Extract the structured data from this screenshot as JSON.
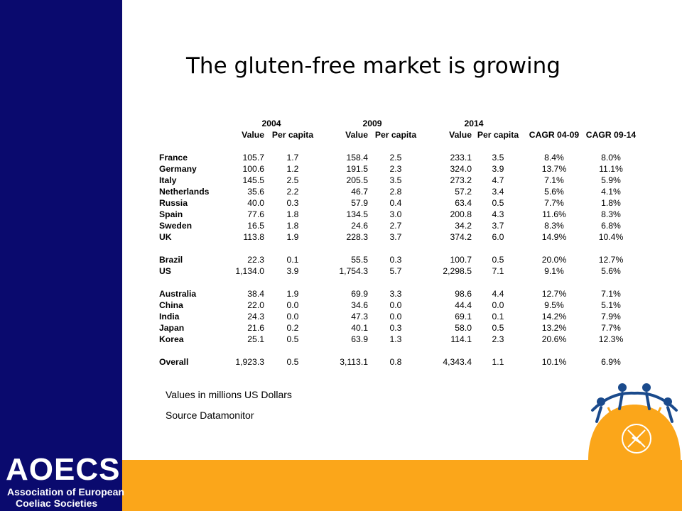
{
  "title": "The gluten-free market is growing",
  "logo": {
    "name": "AOECS",
    "line1": "Association of European",
    "line2": "Coeliac Societies"
  },
  "table": {
    "years": [
      "2004",
      "2009",
      "2014"
    ],
    "columns": [
      "Value",
      "Per capita",
      "Value",
      "Per capita",
      "Value",
      "Per capita",
      "CAGR 04-09",
      "CAGR 09-14"
    ],
    "groups": [
      [
        {
          "country": "France",
          "v2004": "105.7",
          "pc2004": "1.7",
          "v2009": "158.4",
          "pc2009": "2.5",
          "v2014": "233.1",
          "pc2014": "3.5",
          "cagr0409": "8.4%",
          "cagr0914": "8.0%"
        },
        {
          "country": "Germany",
          "v2004": "100.6",
          "pc2004": "1.2",
          "v2009": "191.5",
          "pc2009": "2.3",
          "v2014": "324.0",
          "pc2014": "3.9",
          "cagr0409": "13.7%",
          "cagr0914": "11.1%"
        },
        {
          "country": "Italy",
          "v2004": "145.5",
          "pc2004": "2.5",
          "v2009": "205.5",
          "pc2009": "3.5",
          "v2014": "273.2",
          "pc2014": "4.7",
          "cagr0409": "7.1%",
          "cagr0914": "5.9%"
        },
        {
          "country": "Netherlands",
          "v2004": "35.6",
          "pc2004": "2.2",
          "v2009": "46.7",
          "pc2009": "2.8",
          "v2014": "57.2",
          "pc2014": "3.4",
          "cagr0409": "5.6%",
          "cagr0914": "4.1%"
        },
        {
          "country": "Russia",
          "v2004": "40.0",
          "pc2004": "0.3",
          "v2009": "57.9",
          "pc2009": "0.4",
          "v2014": "63.4",
          "pc2014": "0.5",
          "cagr0409": "7.7%",
          "cagr0914": "1.8%"
        },
        {
          "country": "Spain",
          "v2004": "77.6",
          "pc2004": "1.8",
          "v2009": "134.5",
          "pc2009": "3.0",
          "v2014": "200.8",
          "pc2014": "4.3",
          "cagr0409": "11.6%",
          "cagr0914": "8.3%"
        },
        {
          "country": "Sweden",
          "v2004": "16.5",
          "pc2004": "1.8",
          "v2009": "24.6",
          "pc2009": "2.7",
          "v2014": "34.2",
          "pc2014": "3.7",
          "cagr0409": "8.3%",
          "cagr0914": "6.8%"
        },
        {
          "country": "UK",
          "v2004": "113.8",
          "pc2004": "1.9",
          "v2009": "228.3",
          "pc2009": "3.7",
          "v2014": "374.2",
          "pc2014": "6.0",
          "cagr0409": "14.9%",
          "cagr0914": "10.4%"
        }
      ],
      [
        {
          "country": "Brazil",
          "v2004": "22.3",
          "pc2004": "0.1",
          "v2009": "55.5",
          "pc2009": "0.3",
          "v2014": "100.7",
          "pc2014": "0.5",
          "cagr0409": "20.0%",
          "cagr0914": "12.7%"
        },
        {
          "country": "US",
          "v2004": "1,134.0",
          "pc2004": "3.9",
          "v2009": "1,754.3",
          "pc2009": "5.7",
          "v2014": "2,298.5",
          "pc2014": "7.1",
          "cagr0409": "9.1%",
          "cagr0914": "5.6%"
        }
      ],
      [
        {
          "country": "Australia",
          "v2004": "38.4",
          "pc2004": "1.9",
          "v2009": "69.9",
          "pc2009": "3.3",
          "v2014": "98.6",
          "pc2014": "4.4",
          "cagr0409": "12.7%",
          "cagr0914": "7.1%"
        },
        {
          "country": "China",
          "v2004": "22.0",
          "pc2004": "0.0",
          "v2009": "34.6",
          "pc2009": "0.0",
          "v2014": "44.4",
          "pc2014": "0.0",
          "cagr0409": "9.5%",
          "cagr0914": "5.1%"
        },
        {
          "country": "India",
          "v2004": "24.3",
          "pc2004": "0.0",
          "v2009": "47.3",
          "pc2009": "0.0",
          "v2014": "69.1",
          "pc2014": "0.1",
          "cagr0409": "14.2%",
          "cagr0914": "7.9%"
        },
        {
          "country": "Japan",
          "v2004": "21.6",
          "pc2004": "0.2",
          "v2009": "40.1",
          "pc2009": "0.3",
          "v2014": "58.0",
          "pc2014": "0.5",
          "cagr0409": "13.2%",
          "cagr0914": "7.7%"
        },
        {
          "country": "Korea",
          "v2004": "25.1",
          "pc2004": "0.5",
          "v2009": "63.9",
          "pc2009": "1.3",
          "v2014": "114.1",
          "pc2014": "2.3",
          "cagr0409": "20.6%",
          "cagr0914": "12.3%"
        }
      ],
      [
        {
          "country": "Overall",
          "v2004": "1,923.3",
          "pc2004": "0.5",
          "v2009": "3,113.1",
          "pc2009": "0.8",
          "v2014": "4,343.4",
          "pc2014": "1.1",
          "cagr0409": "10.1%",
          "cagr0914": "6.9%"
        }
      ]
    ]
  },
  "notes": {
    "units": "Values in millions US Dollars",
    "source": "Source Datamonitor"
  },
  "colors": {
    "sidebar": "#0a0a6e",
    "accent": "#fba61a",
    "emblem_figures": "#1a4a8c"
  },
  "icons": {
    "emblem": "coeliac-emblem-icon"
  }
}
